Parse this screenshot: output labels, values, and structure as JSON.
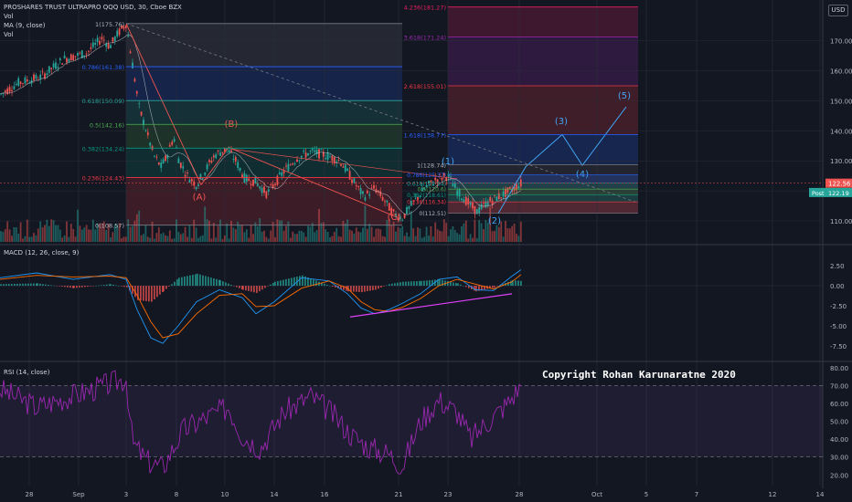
{
  "header": {
    "symbol": "PROSHARES TRUST ULTRAPRO QQQ USD, 30, Cboe BZX",
    "vol": "Vol",
    "ma": "MA (9, close)",
    "vol2": "Vol",
    "macd": "MACD (12, 26, close, 9)",
    "rsi": "RSI (14, close)",
    "currency": "USD"
  },
  "copyright": "Copyright Rohan Karunaratne 2020",
  "colors": {
    "background": "#131722",
    "up": "#26a69a",
    "down": "#ef5350",
    "macd_line": "#2196f3",
    "signal_line": "#ff6d00",
    "rsi_line": "#9c27b0",
    "projection": "#42a5f5",
    "divergence": "#e040fb"
  },
  "chart_data": [
    {
      "type": "candlestick",
      "name": "price",
      "y_axis_ticks": [
        110.0,
        120.0,
        130.0,
        140.0,
        150.0,
        160.0,
        170.0
      ],
      "ylim": [
        103,
        183
      ],
      "x_ticks": [
        "28",
        "Sep",
        "3",
        "8",
        "10",
        "14",
        "16",
        "21",
        "23",
        "28",
        "Oct",
        "5",
        "7",
        "12",
        "14"
      ],
      "current_price": "122.56",
      "post_price": "122.19",
      "post_label": "Post",
      "ma_label": "MA (9, close)",
      "volume_label": "Vol",
      "fib_retracement": [
        {
          "label": "1(175.76)",
          "value": 175.76
        },
        {
          "label": "0.786(161.38)",
          "value": 161.38
        },
        {
          "label": "0.618(150.09)",
          "value": 150.09
        },
        {
          "label": "0.5(142.16)",
          "value": 142.16
        },
        {
          "label": "0.382(134.24)",
          "value": 134.24
        },
        {
          "label": "0.236(124.43)",
          "value": 124.43
        },
        {
          "label": "0(108.57)",
          "value": 108.57
        }
      ],
      "fib_extension": [
        {
          "label": "4.236(181.27)",
          "value": 181.27
        },
        {
          "label": "3.618(171.24)",
          "value": 171.24
        },
        {
          "label": "2.618(155.01)",
          "value": 155.01
        },
        {
          "label": "1.618(138.77)",
          "value": 138.77
        },
        {
          "label": "1(128.74)",
          "value": 128.74
        }
      ],
      "fib_small": [
        {
          "label": "0.786(125.37)",
          "value": 125.37
        },
        {
          "label": "0.618(122.54)",
          "value": 122.54
        },
        {
          "label": "0.5(120.6)",
          "value": 120.6
        },
        {
          "label": "0.382(118.61)",
          "value": 118.61
        },
        {
          "label": "0.236(116.34)",
          "value": 116.34
        },
        {
          "label": "0(112.51)",
          "value": 112.51
        }
      ],
      "wave_labels": [
        "(A)",
        "(B)",
        "(C)",
        "(1)",
        "(2)",
        "(3)",
        "(4)",
        "(5)"
      ]
    },
    {
      "type": "line",
      "name": "MACD",
      "title": "MACD (12, 26, close, 9)",
      "y_axis_ticks": [
        2.5,
        0.0,
        -2.5,
        -5.0,
        -7.5
      ],
      "ylim": [
        -9,
        4
      ]
    },
    {
      "type": "line",
      "name": "RSI",
      "title": "RSI (14, close)",
      "y_axis_ticks": [
        80.0,
        70.0,
        60.0,
        50.0,
        40.0,
        30.0,
        20.0
      ],
      "ylim": [
        14,
        84
      ],
      "bands": [
        70,
        30
      ]
    }
  ]
}
